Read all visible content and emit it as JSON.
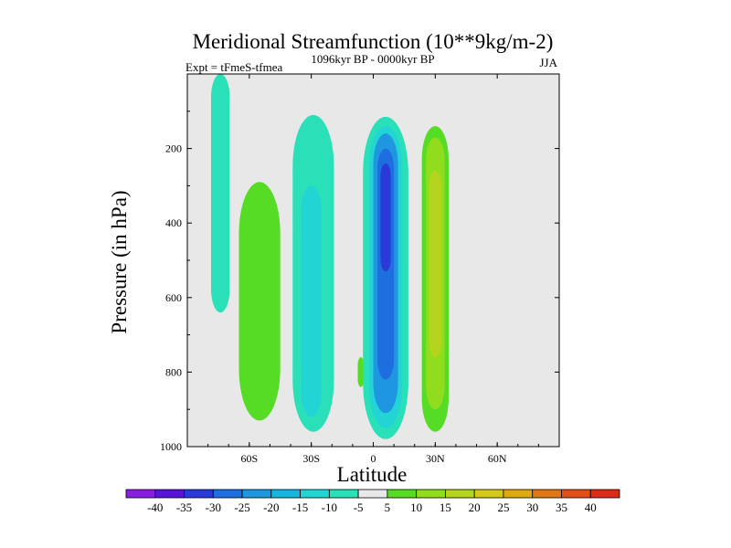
{
  "chart_data": {
    "type": "heatmap",
    "title": "Meridional Streamfunction (10**9kg/m-2)",
    "left_subtitle": "Expt = tFmeS-tfmea",
    "center_subtitle": "1096kyr BP - 0000kyr BP",
    "right_subtitle": "JJA",
    "xlabel": "Latitude",
    "ylabel": "Pressure (in hPa)",
    "xlim": [
      -90,
      90
    ],
    "ylim": [
      0,
      1000
    ],
    "x_ticks": [
      {
        "value": -60,
        "label": "60S"
      },
      {
        "value": -30,
        "label": "30S"
      },
      {
        "value": 0,
        "label": "0"
      },
      {
        "value": 30,
        "label": "30N"
      },
      {
        "value": 60,
        "label": "60N"
      }
    ],
    "y_ticks": [
      {
        "value": 200,
        "label": "200"
      },
      {
        "value": 400,
        "label": "400"
      },
      {
        "value": 600,
        "label": "600"
      },
      {
        "value": 800,
        "label": "800"
      },
      {
        "value": 1000,
        "label": "1000"
      }
    ],
    "levels": [
      -40,
      -35,
      -30,
      -25,
      -20,
      -15,
      -10,
      -5,
      5,
      10,
      15,
      20,
      25,
      30,
      35,
      40
    ],
    "colors": [
      "#8a1ee0",
      "#5a14d8",
      "#2a3ad8",
      "#1e6ee0",
      "#1e96e0",
      "#18b4e0",
      "#22d4d4",
      "#2ae0b8",
      "#e8e8e8",
      "#56dc24",
      "#92dc1e",
      "#b4d41e",
      "#d4c81a",
      "#e0a812",
      "#e07818",
      "#e05018",
      "#dc2c18"
    ],
    "missing_color": "#e8e8e8",
    "contours": [
      {
        "lat": -74,
        "p_top": 0,
        "p_bottom": 640,
        "width": 9,
        "value": -7
      },
      {
        "lat": -55,
        "p_top": 290,
        "p_bottom": 930,
        "width": 20,
        "value": 7
      },
      {
        "lat": -29,
        "p_top": 110,
        "p_bottom": 960,
        "width": 20,
        "value": -7
      },
      {
        "lat": -30,
        "p_top": 300,
        "p_bottom": 920,
        "width": 10,
        "value": -12
      },
      {
        "lat": -6,
        "p_top": 760,
        "p_bottom": 840,
        "width": 3,
        "value": 7
      },
      {
        "lat": 6,
        "p_top": 115,
        "p_bottom": 980,
        "width": 22,
        "value": -9
      },
      {
        "lat": 6,
        "p_top": 140,
        "p_bottom": 950,
        "width": 16,
        "value": -15
      },
      {
        "lat": 6,
        "p_top": 160,
        "p_bottom": 910,
        "width": 12,
        "value": -22
      },
      {
        "lat": 6,
        "p_top": 200,
        "p_bottom": 820,
        "width": 8,
        "value": -28
      },
      {
        "lat": 6,
        "p_top": 240,
        "p_bottom": 530,
        "width": 5,
        "value": -33
      },
      {
        "lat": 30,
        "p_top": 140,
        "p_bottom": 960,
        "width": 13,
        "value": 7
      },
      {
        "lat": 30,
        "p_top": 170,
        "p_bottom": 900,
        "width": 9,
        "value": 12
      },
      {
        "lat": 30,
        "p_top": 260,
        "p_bottom": 760,
        "width": 6,
        "value": 17
      }
    ]
  }
}
